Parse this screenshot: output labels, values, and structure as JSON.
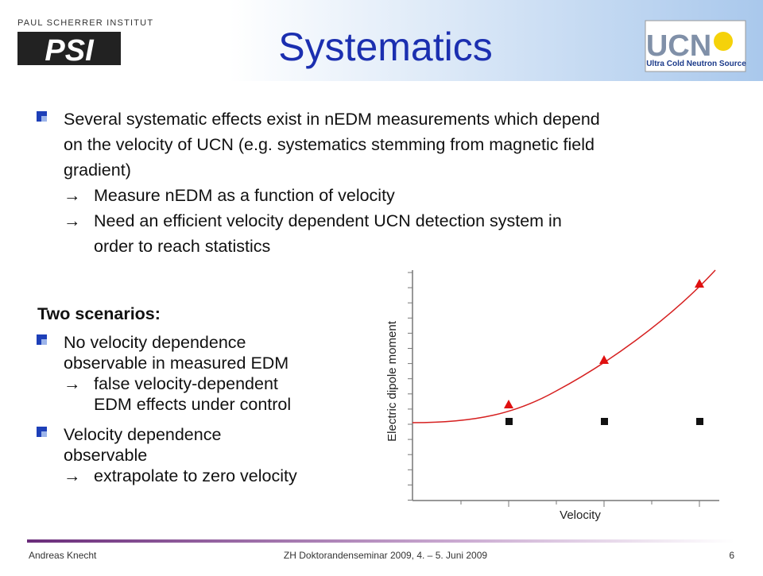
{
  "header": {
    "institute": "PAUL SCHERRER INSTITUT",
    "logo": "PSI",
    "ucn_logo": "UCN",
    "ucn_caption": "Ultra Cold Neutron Source"
  },
  "title": "Systematics",
  "main": {
    "lines": [
      "Several systematic effects exist in nEDM measurements which depend",
      "on the velocity of UCN (e.g. systematics stemming from magnetic field",
      "gradient)"
    ],
    "subs": [
      {
        "arrow": "→",
        "lines": [
          "Measure nEDM as a function of velocity"
        ]
      },
      {
        "arrow": "→",
        "lines": [
          "Need an efficient velocity dependent UCN detection system in",
          "order to reach statistics"
        ]
      }
    ]
  },
  "scenarios": {
    "heading": "Two scenarios:",
    "items": [
      {
        "lines": [
          "No velocity dependence",
          "observable in measured EDM"
        ],
        "arrow": "→",
        "sub": [
          "false velocity-dependent",
          "EDM effects under control"
        ]
      },
      {
        "lines": [
          "Velocity dependence",
          "observable"
        ],
        "arrow": "→",
        "sub": [
          "extrapolate to zero velocity"
        ]
      }
    ]
  },
  "figure": {
    "ylabel": "Electric dipole moment",
    "xlabel": "Velocity"
  },
  "footer": {
    "author": "Andreas Knecht",
    "event": "ZH Doktorandenseminar 2009, 4. – 5. Juni 2009",
    "page": "6"
  }
}
